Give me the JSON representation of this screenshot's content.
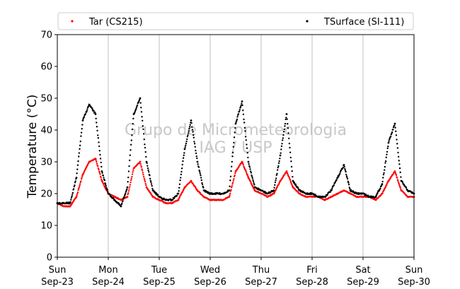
{
  "chart_data": {
    "type": "scatter",
    "title": "",
    "xlabel": "",
    "ylabel": "Temperature (°C)",
    "ylim": [
      0,
      70
    ],
    "yticks": [
      0,
      10,
      20,
      30,
      40,
      50,
      60,
      70
    ],
    "xlim": [
      "2018-09-23 00:00",
      "2018-09-30 00:00"
    ],
    "xticks": [
      {
        "day": "Sun",
        "date": "Sep-23"
      },
      {
        "day": "Mon",
        "date": "Sep-24"
      },
      {
        "day": "Tue",
        "date": "Sep-25"
      },
      {
        "day": "Wed",
        "date": "Sep-26"
      },
      {
        "day": "Thu",
        "date": "Sep-27"
      },
      {
        "day": "Fri",
        "date": "Sep-28"
      },
      {
        "day": "Sat",
        "date": "Sep-29"
      },
      {
        "day": "Sun",
        "date": "Sep-30"
      }
    ],
    "grid": "vertical",
    "legend": "top",
    "watermark": [
      "Grupo de Micrometeorologia",
      "IAG / USP"
    ],
    "series": [
      {
        "name": "Tar (CS215)",
        "color": "#ff0000",
        "x": [
          "2018-09-23 00:00",
          "2018-09-23 03:00",
          "2018-09-23 06:00",
          "2018-09-23 09:00",
          "2018-09-23 12:00",
          "2018-09-23 15:00",
          "2018-09-23 18:00",
          "2018-09-23 21:00",
          "2018-09-24 00:00",
          "2018-09-24 03:00",
          "2018-09-24 06:00",
          "2018-09-24 09:00",
          "2018-09-24 12:00",
          "2018-09-24 15:00",
          "2018-09-24 18:00",
          "2018-09-24 21:00",
          "2018-09-25 00:00",
          "2018-09-25 03:00",
          "2018-09-25 06:00",
          "2018-09-25 09:00",
          "2018-09-25 12:00",
          "2018-09-25 15:00",
          "2018-09-25 18:00",
          "2018-09-25 21:00",
          "2018-09-26 00:00",
          "2018-09-26 03:00",
          "2018-09-26 06:00",
          "2018-09-26 09:00",
          "2018-09-26 12:00",
          "2018-09-26 15:00",
          "2018-09-26 18:00",
          "2018-09-26 21:00",
          "2018-09-27 00:00",
          "2018-09-27 03:00",
          "2018-09-27 06:00",
          "2018-09-27 09:00",
          "2018-09-27 12:00",
          "2018-09-27 15:00",
          "2018-09-27 18:00",
          "2018-09-27 21:00",
          "2018-09-28 00:00",
          "2018-09-28 03:00",
          "2018-09-28 06:00",
          "2018-09-28 09:00",
          "2018-09-28 12:00",
          "2018-09-28 15:00",
          "2018-09-28 18:00",
          "2018-09-28 21:00",
          "2018-09-29 00:00",
          "2018-09-29 03:00",
          "2018-09-29 06:00",
          "2018-09-29 09:00",
          "2018-09-29 12:00",
          "2018-09-29 15:00",
          "2018-09-29 18:00",
          "2018-09-29 21:00",
          "2018-09-30 00:00"
        ],
        "values": [
          17,
          16,
          16,
          19,
          26,
          30,
          31,
          24,
          20,
          19,
          18,
          19,
          28,
          30,
          22,
          19,
          18,
          17,
          17,
          18,
          22,
          24,
          21,
          19,
          18,
          18,
          18,
          19,
          27,
          30,
          25,
          21,
          20,
          19,
          20,
          24,
          27,
          22,
          20,
          19,
          19,
          19,
          18,
          19,
          20,
          21,
          20,
          19,
          19,
          19,
          18,
          20,
          24,
          27,
          21,
          19,
          19
        ]
      },
      {
        "name": "TSurface (SI-111)",
        "color": "#000000",
        "x": [
          "2018-09-23 00:00",
          "2018-09-23 03:00",
          "2018-09-23 06:00",
          "2018-09-23 09:00",
          "2018-09-23 12:00",
          "2018-09-23 15:00",
          "2018-09-23 18:00",
          "2018-09-23 21:00",
          "2018-09-24 00:00",
          "2018-09-24 03:00",
          "2018-09-24 06:00",
          "2018-09-24 09:00",
          "2018-09-24 12:00",
          "2018-09-24 15:00",
          "2018-09-24 18:00",
          "2018-09-24 21:00",
          "2018-09-25 00:00",
          "2018-09-25 03:00",
          "2018-09-25 06:00",
          "2018-09-25 09:00",
          "2018-09-25 12:00",
          "2018-09-25 15:00",
          "2018-09-25 18:00",
          "2018-09-25 21:00",
          "2018-09-26 00:00",
          "2018-09-26 03:00",
          "2018-09-26 06:00",
          "2018-09-26 09:00",
          "2018-09-26 12:00",
          "2018-09-26 15:00",
          "2018-09-26 18:00",
          "2018-09-26 21:00",
          "2018-09-27 00:00",
          "2018-09-27 03:00",
          "2018-09-27 06:00",
          "2018-09-27 09:00",
          "2018-09-27 12:00",
          "2018-09-27 15:00",
          "2018-09-27 18:00",
          "2018-09-27 21:00",
          "2018-09-28 00:00",
          "2018-09-28 03:00",
          "2018-09-28 06:00",
          "2018-09-28 09:00",
          "2018-09-28 12:00",
          "2018-09-28 15:00",
          "2018-09-28 18:00",
          "2018-09-28 21:00",
          "2018-09-29 00:00",
          "2018-09-29 03:00",
          "2018-09-29 06:00",
          "2018-09-29 09:00",
          "2018-09-29 12:00",
          "2018-09-29 15:00",
          "2018-09-29 18:00",
          "2018-09-29 21:00",
          "2018-09-30 00:00"
        ],
        "values": [
          17,
          17,
          17,
          25,
          43,
          48,
          45,
          27,
          20,
          18,
          16,
          22,
          45,
          50,
          30,
          21,
          19,
          18,
          18,
          20,
          34,
          43,
          30,
          21,
          20,
          20,
          20,
          21,
          42,
          49,
          30,
          22,
          21,
          20,
          21,
          32,
          45,
          24,
          21,
          20,
          20,
          19,
          19,
          21,
          25,
          29,
          21,
          20,
          20,
          19,
          19,
          23,
          36,
          42,
          24,
          21,
          20
        ]
      }
    ]
  }
}
